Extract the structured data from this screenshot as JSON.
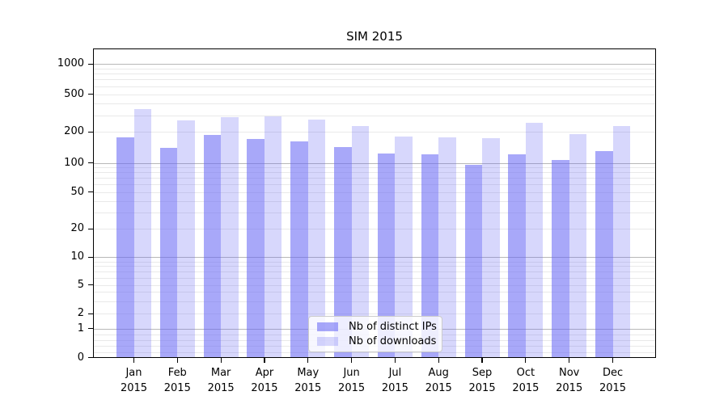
{
  "title": "SIM 2015",
  "chart_data": {
    "type": "bar",
    "title": "SIM 2015",
    "categories": [
      "Jan",
      "Feb",
      "Mar",
      "Apr",
      "May",
      "Jun",
      "Jul",
      "Aug",
      "Sep",
      "Oct",
      "Nov",
      "Dec"
    ],
    "x_year": "2015",
    "series": [
      {
        "name": "Nb of distinct IPs",
        "color": "rgba(102,102,245,0.57)",
        "values": [
          177,
          140,
          187,
          170,
          162,
          143,
          124,
          122,
          96,
          122,
          107,
          131
        ]
      },
      {
        "name": "Nb of downloads",
        "color": "rgba(102,102,245,0.26)",
        "values": [
          350,
          265,
          285,
          295,
          268,
          230,
          180,
          176,
          175,
          251,
          190,
          230
        ]
      }
    ],
    "yscale": "symlog",
    "yticks": [
      0,
      1,
      2,
      5,
      10,
      20,
      50,
      100,
      200,
      500,
      1000
    ],
    "ylim": [
      0,
      1400
    ],
    "xlabel": "",
    "ylabel": "",
    "grid": true,
    "legend_position": "lower-center"
  },
  "colors": {
    "bar_base": "#6666f5",
    "major_grid": "#b8b8b8",
    "minor_grid": "#e9e9e9",
    "spine": "#000000",
    "legend_border": "#cccccc",
    "background": "#ffffff",
    "text": "#000000"
  }
}
